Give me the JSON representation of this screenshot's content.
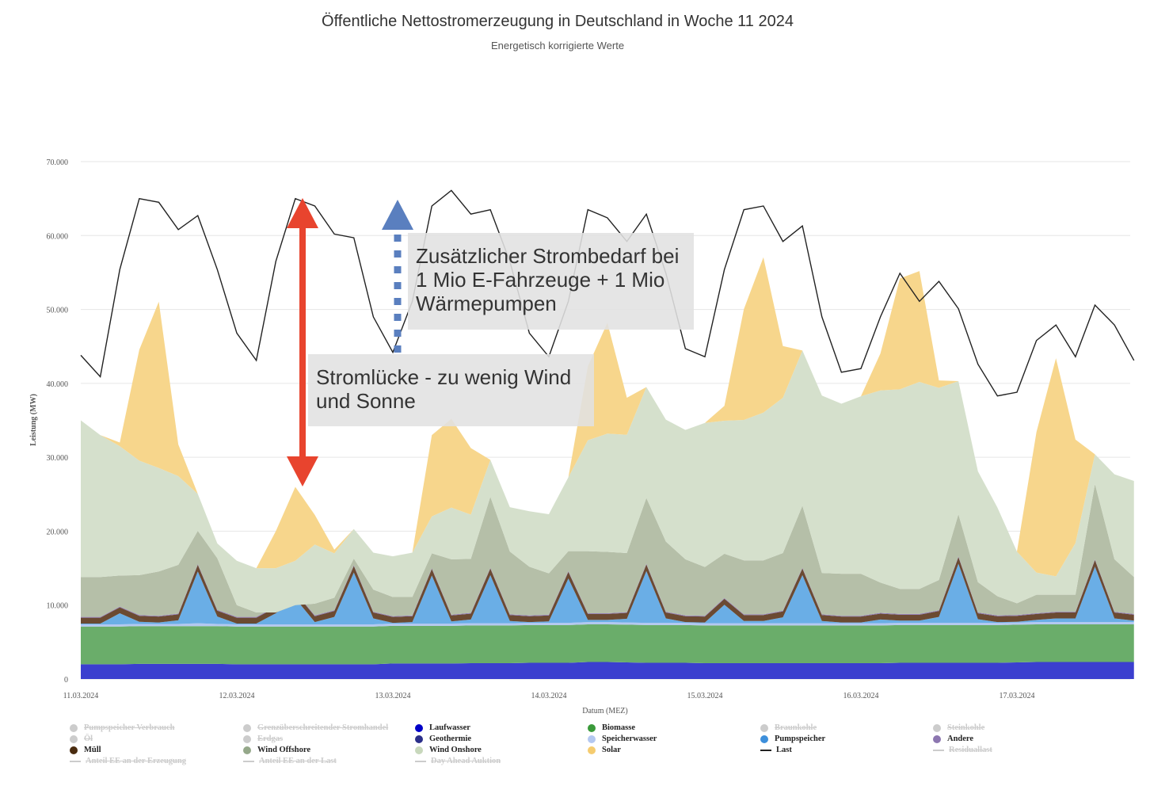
{
  "chart_data": {
    "type": "area",
    "title": "Öffentliche Nettostromerzeugung in Deutschland in Woche 11 2024",
    "subtitle": "Energetisch korrigierte Werte",
    "xlabel": "Datum (MEZ)",
    "ylabel": "Leistung (MW)",
    "ylim": [
      0,
      70000
    ],
    "yticks": [
      0,
      10000,
      20000,
      30000,
      40000,
      50000,
      60000,
      70000
    ],
    "ytick_labels": [
      "0",
      "10.000",
      "20.000",
      "30.000",
      "40.000",
      "50.000",
      "60.000",
      "70.000"
    ],
    "xtick_labels": [
      "11.03.2024",
      "12.03.2024",
      "13.03.2024",
      "14.03.2024",
      "15.03.2024",
      "16.03.2024",
      "17.03.2024"
    ],
    "x_unit": "hours since 11.03.2024 00:00",
    "x": [
      0,
      3,
      6,
      9,
      12,
      15,
      18,
      21,
      24,
      27,
      30,
      33,
      36,
      39,
      42,
      45,
      48,
      51,
      54,
      57,
      60,
      63,
      66,
      69,
      72,
      75,
      78,
      81,
      84,
      87,
      90,
      93,
      96,
      99,
      102,
      105,
      108,
      111,
      114,
      117,
      120,
      123,
      126,
      129,
      132,
      135,
      138,
      141,
      144,
      147,
      150,
      153,
      156,
      159,
      162
    ],
    "series": [
      {
        "name": "Laufwasser",
        "color": "#3b3fcf",
        "legend_color": "#0000c8",
        "values": [
          2000,
          2000,
          2000,
          2050,
          2050,
          2050,
          2050,
          2050,
          2000,
          2000,
          2000,
          2000,
          2000,
          2000,
          2000,
          2000,
          2100,
          2100,
          2100,
          2100,
          2150,
          2150,
          2150,
          2200,
          2200,
          2200,
          2300,
          2300,
          2250,
          2200,
          2200,
          2200,
          2150,
          2150,
          2150,
          2150,
          2150,
          2150,
          2150,
          2150,
          2150,
          2150,
          2200,
          2200,
          2200,
          2200,
          2200,
          2200,
          2250,
          2300,
          2300,
          2300,
          2300,
          2300,
          2300
        ]
      },
      {
        "name": "Biomasse",
        "color": "#6aad6a",
        "legend_color": "#3a9a3a",
        "values": [
          5100,
          5100,
          5100,
          5100,
          5100,
          5100,
          5100,
          5100,
          5100,
          5100,
          5100,
          5100,
          5100,
          5100,
          5100,
          5100,
          5100,
          5100,
          5100,
          5100,
          5100,
          5100,
          5100,
          5100,
          5100,
          5100,
          5100,
          5100,
          5100,
          5100,
          5100,
          5100,
          5100,
          5100,
          5100,
          5100,
          5100,
          5100,
          5100,
          5100,
          5100,
          5100,
          5100,
          5100,
          5100,
          5100,
          5100,
          5100,
          5100,
          5100,
          5100,
          5100,
          5100,
          5100,
          5100
        ]
      },
      {
        "name": "Speicherwasser",
        "color": "#b4c8f0",
        "legend_color": "#b4c8f0",
        "values": [
          300,
          300,
          300,
          300,
          300,
          300,
          400,
          300,
          300,
          300,
          300,
          300,
          300,
          300,
          300,
          300,
          300,
          300,
          300,
          300,
          300,
          300,
          300,
          300,
          300,
          300,
          300,
          300,
          300,
          300,
          300,
          300,
          300,
          300,
          300,
          300,
          300,
          300,
          300,
          300,
          300,
          300,
          300,
          300,
          300,
          300,
          300,
          300,
          300,
          300,
          300,
          300,
          300,
          300,
          300
        ]
      },
      {
        "name": "Pumpspeicher",
        "color": "#6aaee6",
        "legend_color": "#3d8fdb",
        "values": [
          100,
          100,
          1500,
          300,
          200,
          500,
          7000,
          1000,
          100,
          100,
          1500,
          3500,
          300,
          1000,
          7000,
          800,
          100,
          200,
          6500,
          300,
          500,
          6500,
          300,
          100,
          200,
          6000,
          300,
          300,
          500,
          7000,
          600,
          100,
          100,
          2500,
          300,
          300,
          800,
          6500,
          300,
          100,
          100,
          500,
          300,
          300,
          800,
          8000,
          500,
          100,
          100,
          300,
          500,
          500,
          7500,
          500,
          200
        ]
      },
      {
        "name": "Müll",
        "color": "#6b4a32",
        "legend_color": "#4a2c10",
        "values": [
          800,
          800,
          800,
          800,
          800,
          800,
          900,
          800,
          800,
          800,
          800,
          800,
          800,
          800,
          900,
          800,
          800,
          800,
          900,
          800,
          800,
          900,
          800,
          800,
          800,
          900,
          800,
          800,
          800,
          900,
          800,
          800,
          800,
          800,
          800,
          800,
          800,
          900,
          800,
          800,
          800,
          800,
          800,
          800,
          800,
          900,
          800,
          800,
          800,
          800,
          800,
          800,
          900,
          800,
          800
        ]
      },
      {
        "name": "Andere",
        "color": "#8c76b0",
        "legend_color": "#8c76b0",
        "values": [
          100,
          100,
          100,
          100,
          100,
          100,
          100,
          100,
          100,
          100,
          100,
          100,
          100,
          100,
          100,
          100,
          100,
          100,
          100,
          100,
          100,
          100,
          100,
          100,
          100,
          100,
          100,
          100,
          100,
          100,
          100,
          100,
          100,
          100,
          100,
          100,
          100,
          100,
          100,
          100,
          100,
          100,
          100,
          100,
          100,
          100,
          100,
          100,
          100,
          100,
          100,
          100,
          100,
          100,
          100
        ]
      },
      {
        "name": "Wind Offshore",
        "color": "#b5bfa8",
        "legend_color": "#95a88a",
        "values": [
          5400,
          5400,
          4200,
          5400,
          6000,
          6600,
          4500,
          7000,
          1600,
          600,
          -800,
          -1800,
          1600,
          1700,
          900,
          3000,
          2600,
          2500,
          2000,
          7500,
          7300,
          9600,
          8500,
          6600,
          5600,
          2700,
          8400,
          8300,
          8000,
          8900,
          9500,
          7600,
          6600,
          6000,
          7300,
          7300,
          7800,
          8400,
          5600,
          5700,
          5700,
          4100,
          3400,
          3400,
          4100,
          5700,
          4100,
          2600,
          1600,
          2500,
          2300,
          2300,
          10200,
          7100,
          5000
        ]
      },
      {
        "name": "Wind Onshore",
        "color": "#d5e0cc",
        "legend_color": "#c8d8bc",
        "values": [
          21200,
          19200,
          17500,
          15500,
          14000,
          12000,
          5000,
          2000,
          6000,
          6000,
          6000,
          6000,
          8000,
          6000,
          4000,
          5000,
          5500,
          6000,
          5000,
          7000,
          6000,
          5000,
          6000,
          7500,
          8000,
          10000,
          15000,
          16000,
          16000,
          15000,
          16500,
          17500,
          19500,
          18000,
          19000,
          20000,
          21000,
          21000,
          24000,
          23000,
          24000,
          26000,
          27000,
          28000,
          26000,
          18000,
          15000,
          12000,
          7000,
          3000,
          2500,
          7000,
          4000,
          11500,
          13000
        ]
      },
      {
        "name": "Solar",
        "color": "#f7d68c",
        "legend_color": "#f5cc70",
        "values": [
          0,
          0,
          500,
          15000,
          22500,
          4300,
          0,
          0,
          0,
          0,
          5000,
          10000,
          4000,
          500,
          0,
          0,
          0,
          0,
          11000,
          12000,
          9000,
          0,
          0,
          0,
          0,
          0,
          10000,
          15000,
          5000,
          0,
          0,
          0,
          0,
          2000,
          15000,
          21000,
          7000,
          0,
          0,
          0,
          0,
          5000,
          15000,
          15000,
          1000,
          0,
          0,
          0,
          0,
          19000,
          29500,
          14000,
          0,
          0,
          0
        ]
      }
    ],
    "line_series": [
      {
        "name": "Last",
        "color": "#222222",
        "values": [
          43800,
          40900,
          55400,
          65000,
          64500,
          60800,
          62700,
          55400,
          46800,
          43100,
          56500,
          65000,
          64000,
          60200,
          59700,
          49000,
          44200,
          51100,
          64000,
          66100,
          62900,
          63500,
          56500,
          46800,
          43600,
          51100,
          63500,
          62400,
          59200,
          62900,
          54900,
          44700,
          43600,
          55400,
          63500,
          64000,
          59200,
          61300,
          49000,
          41500,
          42000,
          49000,
          54900,
          51100,
          53800,
          50100,
          42600,
          38300,
          38800,
          45800,
          47900,
          43600,
          50600,
          47900,
          43100
        ]
      }
    ],
    "legend_placement": "bottom",
    "legend": [
      {
        "label": "Pumpspeicher Verbrauch",
        "visible": false,
        "type": "dot"
      },
      {
        "label": "Grenzüberschreitender Stromhandel",
        "visible": false,
        "type": "dot"
      },
      {
        "label": "Laufwasser",
        "visible": true,
        "type": "dot",
        "color": "#0000c8"
      },
      {
        "label": "Biomasse",
        "visible": true,
        "type": "dot",
        "color": "#3a9a3a"
      },
      {
        "label": "Braunkohle",
        "visible": false,
        "type": "dot"
      },
      {
        "label": "Steinkohle",
        "visible": false,
        "type": "dot"
      },
      {
        "label": "Öl",
        "visible": false,
        "type": "dot"
      },
      {
        "label": "Erdgas",
        "visible": false,
        "type": "dot"
      },
      {
        "label": "Geothermie",
        "visible": true,
        "type": "dot",
        "color": "#2b2f8a"
      },
      {
        "label": "Speicherwasser",
        "visible": true,
        "type": "dot",
        "color": "#b4c8f0"
      },
      {
        "label": "Pumpspeicher",
        "visible": true,
        "type": "dot",
        "color": "#3d8fdb"
      },
      {
        "label": "Andere",
        "visible": true,
        "type": "dot",
        "color": "#8c76b0"
      },
      {
        "label": "Müll",
        "visible": true,
        "type": "dot",
        "color": "#4a2c10"
      },
      {
        "label": "Wind Offshore",
        "visible": true,
        "type": "dot",
        "color": "#95a88a"
      },
      {
        "label": "Wind Onshore",
        "visible": true,
        "type": "dot",
        "color": "#c8d8bc"
      },
      {
        "label": "Solar",
        "visible": true,
        "type": "dot",
        "color": "#f5cc70"
      },
      {
        "label": "Last",
        "visible": true,
        "type": "line",
        "color": "#222222"
      },
      {
        "label": "Residuallast",
        "visible": false,
        "type": "line"
      },
      {
        "label": "Anteil EE an der Erzeugung",
        "visible": false,
        "type": "line"
      },
      {
        "label": "Anteil EE an der Last",
        "visible": false,
        "type": "line"
      },
      {
        "label": "Day Ahead Auktion",
        "visible": false,
        "type": "line"
      }
    ],
    "annotations": [
      {
        "text": "Zusätzlicher Strombedarf bei 1 Mio E-Fahrzeuge + 1 Mio Wärmepumpen",
        "arrow": "dotted blue up"
      },
      {
        "text": "Stromlücke - zu wenig Wind und Sonne",
        "arrow": "red double-headed"
      }
    ]
  }
}
